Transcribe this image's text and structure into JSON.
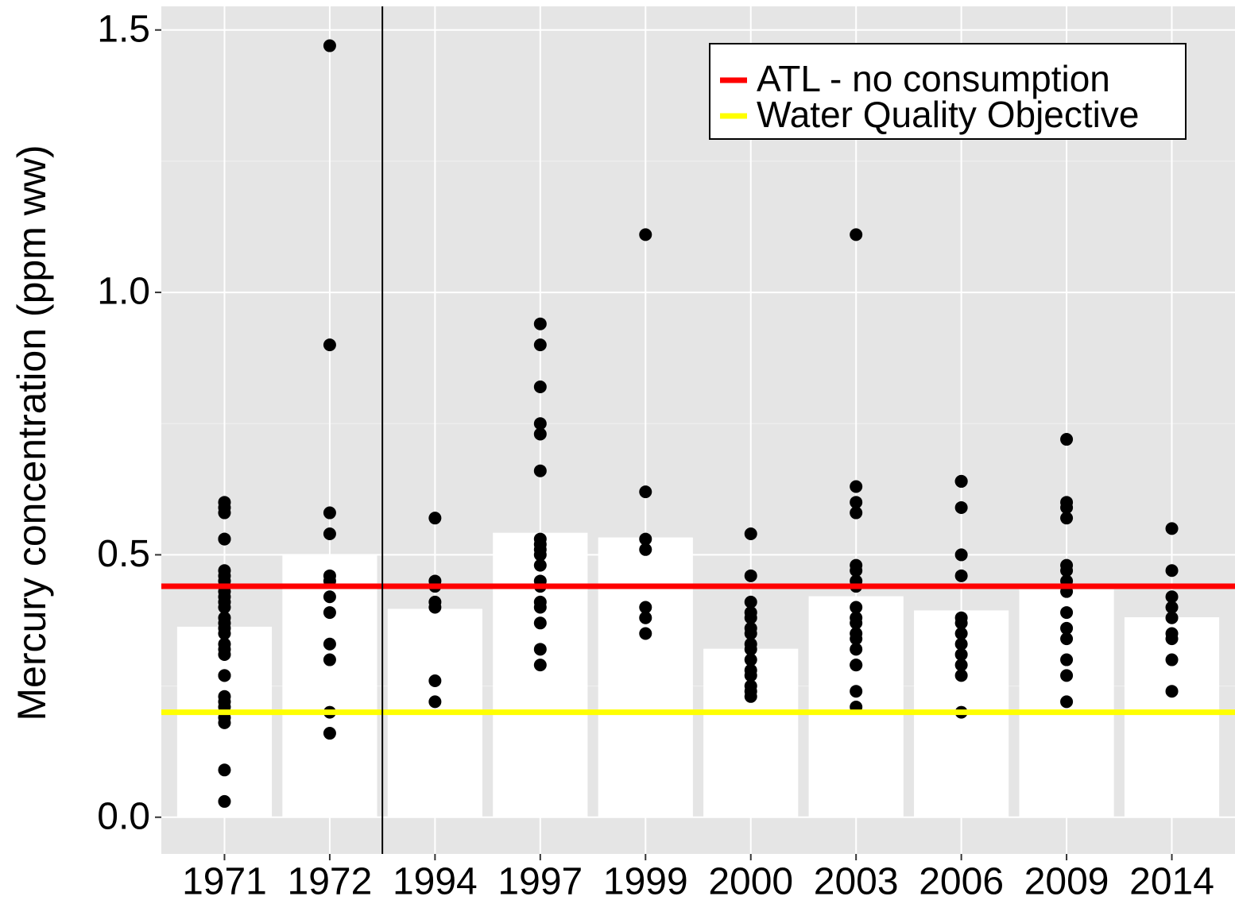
{
  "chart_data": {
    "type": "bar",
    "y_label": "Mercury concentration (ppm ww)",
    "categories": [
      "1971",
      "1972",
      "1994",
      "1997",
      "1999",
      "2000",
      "2003",
      "2006",
      "2009",
      "2014"
    ],
    "values": [
      0.363,
      0.5,
      0.397,
      0.542,
      0.533,
      0.321,
      0.421,
      0.394,
      0.434,
      0.381
    ],
    "color": "#ffffff",
    "point_color": "#000000",
    "points": [
      [
        0.6,
        0.59,
        0.58,
        0.53,
        0.53,
        0.47,
        0.46,
        0.45,
        0.44,
        0.43,
        0.42,
        0.41,
        0.4,
        0.38,
        0.37,
        0.36,
        0.35,
        0.33,
        0.32,
        0.31,
        0.27,
        0.27,
        0.23,
        0.22,
        0.21,
        0.19,
        0.18,
        0.09,
        0.03
      ],
      [
        1.47,
        0.9,
        0.58,
        0.54,
        0.46,
        0.45,
        0.42,
        0.39,
        0.33,
        0.3,
        0.2,
        0.16
      ],
      [
        0.57,
        0.45,
        0.44,
        0.41,
        0.4,
        0.26,
        0.22
      ],
      [
        0.94,
        0.9,
        0.82,
        0.75,
        0.73,
        0.66,
        0.53,
        0.52,
        0.51,
        0.5,
        0.48,
        0.45,
        0.44,
        0.41,
        0.4,
        0.37,
        0.32,
        0.29
      ],
      [
        1.11,
        0.62,
        0.53,
        0.51,
        0.4,
        0.38,
        0.35
      ],
      [
        0.54,
        0.46,
        0.41,
        0.39,
        0.38,
        0.36,
        0.35,
        0.33,
        0.32,
        0.3,
        0.28,
        0.27,
        0.25,
        0.24,
        0.23
      ],
      [
        1.11,
        0.63,
        0.6,
        0.58,
        0.48,
        0.47,
        0.45,
        0.44,
        0.4,
        0.38,
        0.37,
        0.35,
        0.34,
        0.32,
        0.29,
        0.29,
        0.24,
        0.21
      ],
      [
        0.64,
        0.64,
        0.59,
        0.5,
        0.46,
        0.38,
        0.37,
        0.35,
        0.33,
        0.31,
        0.29,
        0.27,
        0.2
      ],
      [
        0.72,
        0.6,
        0.59,
        0.57,
        0.48,
        0.47,
        0.45,
        0.43,
        0.39,
        0.36,
        0.34,
        0.3,
        0.27,
        0.22
      ],
      [
        0.55,
        0.47,
        0.42,
        0.4,
        0.38,
        0.35,
        0.34,
        0.3,
        0.24
      ]
    ],
    "hlines": [
      {
        "name": "ATL - no consumption",
        "value": 0.44,
        "color": "#ff0000"
      },
      {
        "name": "Water Quality Objective",
        "value": 0.2,
        "color": "#ffff00"
      }
    ],
    "ylim": [
      -0.07,
      1.545
    ],
    "yticks": [
      {
        "value": 0,
        "label": "0.0"
      },
      0.5,
      {
        "value": 1,
        "label": "1.0"
      },
      1.5
    ],
    "y_minor_ticks": [
      0.25,
      0.75,
      1.25
    ],
    "grid": true,
    "legend_position": "top-right"
  }
}
